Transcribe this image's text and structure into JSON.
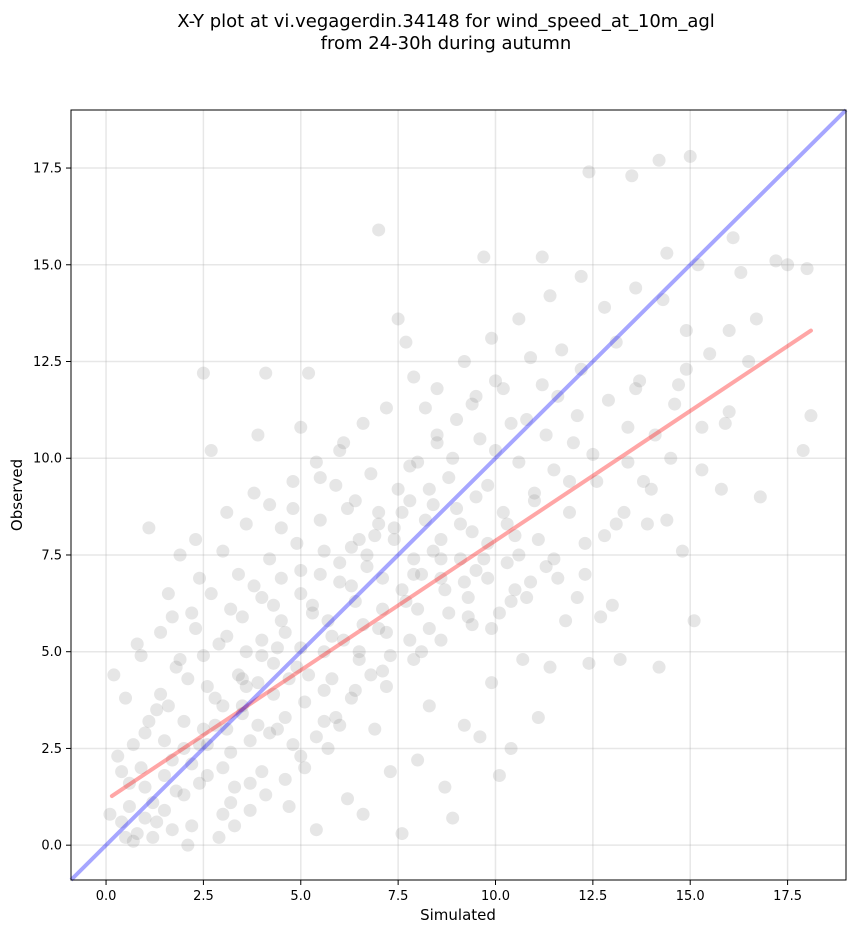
{
  "chart_data": {
    "type": "scatter",
    "title_line1": "X-Y plot at vi.vegagerdin.34148 for wind_speed_at_10m_agl",
    "title_line2": "from 24-30h during autumn",
    "xlabel": "Simulated",
    "ylabel": "Observed",
    "xlim": [
      -0.9,
      19.0
    ],
    "ylim": [
      -0.9,
      19.0
    ],
    "xticks": [
      0.0,
      2.5,
      5.0,
      7.5,
      10.0,
      12.5,
      15.0,
      17.5
    ],
    "xtick_labels": [
      "0.0",
      "2.5",
      "5.0",
      "7.5",
      "10.0",
      "12.5",
      "15.0",
      "17.5"
    ],
    "yticks": [
      0.0,
      2.5,
      5.0,
      7.5,
      10.0,
      12.5,
      15.0,
      17.5
    ],
    "ytick_labels": [
      "0.0",
      "2.5",
      "5.0",
      "7.5",
      "10.0",
      "12.5",
      "15.0",
      "17.5"
    ],
    "grid": true,
    "point_color": "#808080",
    "identity_line": {
      "x": [
        -0.9,
        19.0
      ],
      "y": [
        -0.9,
        19.0
      ],
      "color": "#0000ff"
    },
    "regression_line": {
      "x": [
        0.15,
        18.1
      ],
      "y": [
        1.27,
        13.3
      ],
      "color": "#ff0000"
    },
    "points": [
      [
        0.4,
        0.6
      ],
      [
        0.6,
        1.0
      ],
      [
        0.8,
        0.3
      ],
      [
        1.0,
        1.5
      ],
      [
        1.2,
        0.2
      ],
      [
        1.5,
        0.9
      ],
      [
        1.7,
        2.2
      ],
      [
        2.0,
        1.3
      ],
      [
        2.2,
        0.5
      ],
      [
        2.4,
        2.6
      ],
      [
        2.6,
        1.8
      ],
      [
        2.8,
        3.1
      ],
      [
        3.0,
        0.8
      ],
      [
        3.2,
        2.4
      ],
      [
        3.5,
        3.6
      ],
      [
        3.7,
        1.6
      ],
      [
        3.9,
        4.2
      ],
      [
        4.2,
        2.9
      ],
      [
        4.4,
        5.1
      ],
      [
        4.6,
        3.3
      ],
      [
        4.9,
        4.6
      ],
      [
        5.1,
        2.0
      ],
      [
        5.3,
        6.0
      ],
      [
        5.6,
        4.0
      ],
      [
        5.8,
        5.4
      ],
      [
        6.0,
        3.1
      ],
      [
        6.3,
        6.7
      ],
      [
        6.5,
        4.8
      ],
      [
        6.7,
        7.5
      ],
      [
        7.0,
        5.6
      ],
      [
        7.2,
        4.1
      ],
      [
        7.4,
        8.2
      ],
      [
        7.7,
        6.3
      ],
      [
        7.9,
        7.0
      ],
      [
        8.1,
        5.0
      ],
      [
        8.4,
        8.8
      ],
      [
        8.6,
        6.9
      ],
      [
        8.8,
        9.5
      ],
      [
        9.1,
        7.4
      ],
      [
        9.3,
        5.9
      ],
      [
        9.5,
        9.0
      ],
      [
        9.8,
        7.8
      ],
      [
        10.0,
        10.2
      ],
      [
        10.3,
        8.3
      ],
      [
        10.5,
        6.6
      ],
      [
        10.8,
        11.0
      ],
      [
        11.0,
        8.9
      ],
      [
        11.3,
        7.2
      ],
      [
        11.6,
        11.6
      ],
      [
        11.9,
        9.4
      ],
      [
        12.2,
        12.3
      ],
      [
        12.5,
        10.1
      ],
      [
        12.8,
        8.0
      ],
      [
        13.1,
        13.0
      ],
      [
        13.4,
        10.8
      ],
      [
        13.7,
        12.0
      ],
      [
        14.0,
        9.2
      ],
      [
        14.3,
        14.1
      ],
      [
        14.6,
        11.4
      ],
      [
        14.9,
        13.3
      ],
      [
        15.2,
        15.0
      ],
      [
        15.5,
        12.7
      ],
      [
        15.9,
        10.9
      ],
      [
        16.3,
        14.8
      ],
      [
        16.8,
        9.0
      ],
      [
        17.5,
        15.0
      ],
      [
        17.9,
        10.2
      ],
      [
        18.1,
        11.1
      ],
      [
        18.0,
        14.9
      ],
      [
        12.4,
        17.4
      ],
      [
        13.5,
        17.3
      ],
      [
        14.2,
        17.7
      ],
      [
        15.0,
        17.8
      ],
      [
        9.7,
        15.2
      ],
      [
        7.0,
        15.9
      ],
      [
        11.2,
        15.2
      ],
      [
        16.1,
        15.7
      ],
      [
        0.2,
        4.4
      ],
      [
        0.5,
        3.8
      ],
      [
        0.9,
        4.9
      ],
      [
        1.1,
        8.2
      ],
      [
        1.6,
        6.5
      ],
      [
        1.9,
        7.5
      ],
      [
        2.3,
        7.9
      ],
      [
        2.5,
        12.2
      ],
      [
        2.7,
        10.2
      ],
      [
        3.4,
        7.0
      ],
      [
        3.9,
        10.6
      ],
      [
        4.1,
        12.2
      ],
      [
        5.0,
        10.8
      ],
      [
        5.2,
        12.2
      ],
      [
        6.1,
        10.4
      ],
      [
        7.5,
        13.6
      ],
      [
        7.7,
        13.0
      ],
      [
        8.2,
        11.3
      ],
      [
        3.3,
        1.5
      ],
      [
        1.3,
        3.5
      ],
      [
        0.3,
        2.3
      ],
      [
        0.7,
        0.1
      ],
      [
        2.1,
        0.0
      ],
      [
        2.9,
        5.2
      ],
      [
        3.6,
        5.0
      ],
      [
        4.3,
        6.2
      ],
      [
        4.7,
        1.0
      ],
      [
        5.4,
        0.4
      ],
      [
        5.7,
        2.5
      ],
      [
        6.2,
        1.2
      ],
      [
        6.6,
        0.8
      ],
      [
        6.9,
        3.0
      ],
      [
        7.3,
        1.9
      ],
      [
        7.6,
        0.3
      ],
      [
        8.0,
        2.2
      ],
      [
        8.3,
        3.6
      ],
      [
        8.7,
        1.5
      ],
      [
        8.9,
        0.7
      ],
      [
        9.2,
        3.1
      ],
      [
        9.6,
        2.8
      ],
      [
        9.9,
        4.2
      ],
      [
        10.1,
        1.8
      ],
      [
        10.4,
        2.5
      ],
      [
        10.7,
        4.8
      ],
      [
        11.1,
        3.3
      ],
      [
        11.4,
        4.6
      ],
      [
        11.8,
        5.8
      ],
      [
        12.1,
        6.4
      ],
      [
        12.4,
        4.7
      ],
      [
        12.7,
        5.9
      ],
      [
        13.0,
        6.2
      ],
      [
        13.2,
        4.8
      ],
      [
        14.2,
        4.6
      ],
      [
        15.1,
        5.8
      ],
      [
        14.8,
        7.6
      ],
      [
        14.4,
        8.4
      ],
      [
        13.9,
        8.3
      ],
      [
        13.3,
        8.6
      ],
      [
        15.3,
        9.7
      ],
      [
        15.8,
        9.2
      ],
      [
        16.5,
        12.5
      ],
      [
        16.0,
        11.2
      ],
      [
        14.9,
        12.3
      ],
      [
        13.6,
        11.8
      ],
      [
        12.9,
        11.5
      ],
      [
        12.0,
        10.4
      ],
      [
        11.5,
        9.7
      ],
      [
        10.9,
        12.6
      ],
      [
        10.2,
        11.8
      ],
      [
        9.4,
        11.4
      ],
      [
        8.5,
        10.4
      ],
      [
        7.8,
        9.8
      ],
      [
        6.8,
        9.6
      ],
      [
        6.4,
        8.9
      ],
      [
        5.9,
        9.3
      ],
      [
        5.5,
        9.5
      ],
      [
        4.8,
        8.7
      ],
      [
        4.5,
        8.2
      ],
      [
        3.8,
        9.1
      ],
      [
        3.1,
        8.6
      ],
      [
        2.2,
        6.0
      ],
      [
        1.4,
        5.5
      ],
      [
        0.8,
        5.2
      ],
      [
        1.8,
        4.6
      ],
      [
        2.6,
        4.1
      ],
      [
        3.4,
        4.4
      ],
      [
        4.0,
        4.9
      ],
      [
        4.6,
        5.5
      ],
      [
        5.3,
        6.2
      ],
      [
        6.0,
        6.8
      ],
      [
        6.7,
        7.2
      ],
      [
        7.4,
        7.9
      ],
      [
        8.2,
        8.4
      ],
      [
        9.0,
        8.7
      ],
      [
        9.8,
        9.3
      ],
      [
        10.6,
        9.9
      ],
      [
        11.3,
        10.6
      ],
      [
        12.1,
        11.1
      ],
      [
        0.9,
        2.0
      ],
      [
        1.5,
        2.7
      ],
      [
        2.0,
        3.2
      ],
      [
        2.8,
        3.8
      ],
      [
        3.6,
        4.1
      ],
      [
        4.3,
        4.7
      ],
      [
        5.0,
        5.1
      ],
      [
        5.7,
        5.8
      ],
      [
        6.4,
        6.3
      ],
      [
        7.1,
        6.9
      ],
      [
        7.9,
        7.4
      ],
      [
        8.6,
        7.9
      ],
      [
        9.4,
        8.1
      ],
      [
        10.2,
        8.6
      ],
      [
        11.0,
        9.1
      ],
      [
        1.2,
        1.1
      ],
      [
        1.7,
        0.4
      ],
      [
        2.4,
        1.6
      ],
      [
        3.0,
        2.0
      ],
      [
        3.7,
        2.7
      ],
      [
        4.4,
        3.0
      ],
      [
        5.1,
        3.7
      ],
      [
        5.8,
        4.3
      ],
      [
        6.5,
        5.0
      ],
      [
        7.2,
        5.5
      ],
      [
        8.0,
        6.1
      ],
      [
        8.7,
        6.6
      ],
      [
        9.5,
        7.1
      ],
      [
        10.3,
        7.3
      ],
      [
        11.1,
        7.9
      ],
      [
        11.9,
        8.6
      ],
      [
        12.6,
        9.4
      ],
      [
        13.4,
        9.9
      ],
      [
        14.1,
        10.6
      ],
      [
        14.7,
        11.9
      ],
      [
        0.6,
        1.6
      ],
      [
        1.0,
        2.9
      ],
      [
        1.4,
        3.9
      ],
      [
        1.9,
        4.8
      ],
      [
        2.3,
        5.6
      ],
      [
        2.7,
        6.5
      ],
      [
        3.2,
        6.1
      ],
      [
        3.8,
        6.7
      ],
      [
        4.2,
        7.4
      ],
      [
        4.9,
        7.8
      ],
      [
        5.5,
        8.4
      ],
      [
        6.2,
        8.7
      ],
      [
        6.9,
        8.0
      ],
      [
        7.6,
        8.6
      ],
      [
        8.3,
        9.2
      ],
      [
        8.9,
        10.0
      ],
      [
        9.6,
        10.5
      ],
      [
        10.4,
        10.9
      ],
      [
        11.2,
        11.9
      ],
      [
        11.7,
        12.8
      ],
      [
        0.1,
        0.8
      ],
      [
        0.4,
        1.9
      ],
      [
        0.7,
        2.6
      ],
      [
        1.1,
        3.2
      ],
      [
        1.6,
        3.6
      ],
      [
        2.1,
        4.3
      ],
      [
        2.5,
        4.9
      ],
      [
        3.1,
        5.4
      ],
      [
        3.5,
        5.9
      ],
      [
        4.0,
        6.4
      ],
      [
        4.5,
        6.9
      ],
      [
        5.0,
        7.1
      ],
      [
        5.6,
        7.6
      ],
      [
        6.3,
        7.7
      ],
      [
        7.0,
        8.3
      ],
      [
        7.8,
        8.9
      ],
      [
        8.4,
        7.6
      ],
      [
        9.1,
        8.3
      ],
      [
        9.7,
        7.4
      ],
      [
        10.5,
        8.0
      ],
      [
        1.3,
        0.6
      ],
      [
        1.8,
        1.4
      ],
      [
        2.2,
        2.1
      ],
      [
        2.6,
        2.6
      ],
      [
        3.1,
        3.0
      ],
      [
        3.5,
        3.4
      ],
      [
        3.9,
        3.1
      ],
      [
        4.3,
        3.9
      ],
      [
        4.7,
        4.3
      ],
      [
        5.2,
        4.4
      ],
      [
        5.6,
        5.0
      ],
      [
        6.1,
        5.3
      ],
      [
        6.6,
        5.7
      ],
      [
        7.1,
        6.1
      ],
      [
        7.6,
        6.6
      ],
      [
        8.1,
        7.0
      ],
      [
        8.6,
        7.4
      ],
      [
        9.2,
        6.8
      ],
      [
        9.8,
        6.9
      ],
      [
        10.6,
        7.5
      ],
      [
        0.5,
        0.2
      ],
      [
        1.0,
        0.7
      ],
      [
        1.5,
        1.8
      ],
      [
        2.0,
        2.5
      ],
      [
        2.5,
        3.0
      ],
      [
        3.0,
        3.6
      ],
      [
        3.5,
        4.3
      ],
      [
        4.0,
        5.3
      ],
      [
        4.5,
        5.8
      ],
      [
        5.0,
        6.5
      ],
      [
        5.5,
        7.0
      ],
      [
        6.0,
        7.3
      ],
      [
        6.5,
        7.9
      ],
      [
        7.0,
        8.6
      ],
      [
        7.5,
        9.2
      ],
      [
        8.0,
        9.9
      ],
      [
        8.5,
        10.6
      ],
      [
        9.0,
        11.0
      ],
      [
        9.5,
        11.6
      ],
      [
        10.0,
        12.0
      ],
      [
        2.9,
        0.2
      ],
      [
        3.3,
        0.5
      ],
      [
        3.7,
        0.9
      ],
      [
        4.1,
        1.3
      ],
      [
        4.6,
        1.7
      ],
      [
        5.0,
        2.3
      ],
      [
        5.4,
        2.8
      ],
      [
        5.9,
        3.3
      ],
      [
        6.3,
        3.8
      ],
      [
        6.8,
        4.4
      ],
      [
        7.3,
        4.9
      ],
      [
        7.8,
        5.3
      ],
      [
        8.3,
        5.6
      ],
      [
        8.8,
        6.0
      ],
      [
        9.3,
        6.4
      ],
      [
        9.9,
        5.6
      ],
      [
        10.4,
        6.3
      ],
      [
        10.9,
        6.8
      ],
      [
        11.5,
        7.4
      ],
      [
        12.3,
        7.0
      ],
      [
        1.7,
        5.9
      ],
      [
        2.4,
        6.9
      ],
      [
        3.0,
        7.6
      ],
      [
        3.6,
        8.3
      ],
      [
        4.2,
        8.8
      ],
      [
        4.8,
        9.4
      ],
      [
        5.4,
        9.9
      ],
      [
        6.0,
        10.2
      ],
      [
        6.6,
        10.9
      ],
      [
        7.2,
        11.3
      ],
      [
        7.9,
        12.1
      ],
      [
        8.5,
        11.8
      ],
      [
        9.2,
        12.5
      ],
      [
        9.9,
        13.1
      ],
      [
        10.6,
        13.6
      ],
      [
        11.4,
        14.2
      ],
      [
        12.2,
        14.7
      ],
      [
        12.8,
        13.9
      ],
      [
        13.6,
        14.4
      ],
      [
        14.4,
        15.3
      ],
      [
        3.2,
        1.1
      ],
      [
        4.0,
        1.9
      ],
      [
        4.8,
        2.6
      ],
      [
        5.6,
        3.2
      ],
      [
        6.4,
        4.0
      ],
      [
        7.1,
        4.5
      ],
      [
        7.9,
        4.8
      ],
      [
        8.6,
        5.3
      ],
      [
        9.4,
        5.7
      ],
      [
        10.1,
        6.0
      ],
      [
        10.8,
        6.4
      ],
      [
        11.6,
        6.9
      ],
      [
        12.3,
        7.8
      ],
      [
        13.1,
        8.3
      ],
      [
        13.8,
        9.4
      ],
      [
        14.5,
        10.0
      ],
      [
        15.3,
        10.8
      ],
      [
        16.0,
        13.3
      ],
      [
        16.7,
        13.6
      ],
      [
        17.2,
        15.1
      ]
    ]
  }
}
